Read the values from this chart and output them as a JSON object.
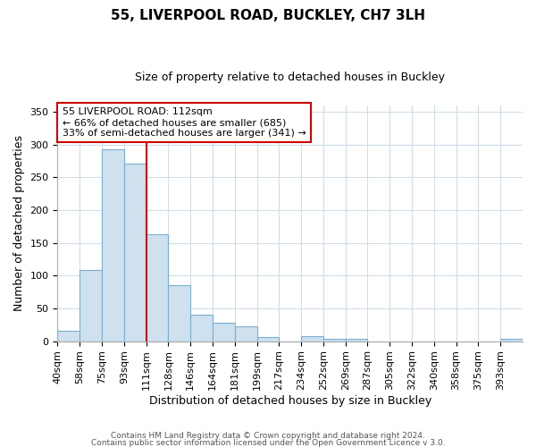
{
  "title": "55, LIVERPOOL ROAD, BUCKLEY, CH7 3LH",
  "subtitle": "Size of property relative to detached houses in Buckley",
  "xlabel": "Distribution of detached houses by size in Buckley",
  "ylabel": "Number of detached properties",
  "bin_labels": [
    "40sqm",
    "58sqm",
    "75sqm",
    "93sqm",
    "111sqm",
    "128sqm",
    "146sqm",
    "164sqm",
    "181sqm",
    "199sqm",
    "217sqm",
    "234sqm",
    "252sqm",
    "269sqm",
    "287sqm",
    "305sqm",
    "322sqm",
    "340sqm",
    "358sqm",
    "375sqm",
    "393sqm"
  ],
  "bar_heights": [
    16,
    109,
    293,
    271,
    163,
    86,
    41,
    28,
    22,
    6,
    0,
    7,
    4,
    3,
    0,
    0,
    0,
    0,
    0,
    0,
    3
  ],
  "vline_index": 4,
  "annotation_title": "55 LIVERPOOL ROAD: 112sqm",
  "annotation_line1": "← 66% of detached houses are smaller (685)",
  "annotation_line2": "33% of semi-detached houses are larger (341) →",
  "bar_color": "#cfe0ef",
  "bar_edge_color": "#7ab0d0",
  "vline_color": "#cc0000",
  "annotation_box_edge_color": "#cc0000",
  "ylim": [
    0,
    360
  ],
  "yticks": [
    0,
    50,
    100,
    150,
    200,
    250,
    300,
    350
  ],
  "footer1": "Contains HM Land Registry data © Crown copyright and database right 2024.",
  "footer2": "Contains public sector information licensed under the Open Government Licence v 3.0.",
  "grid_color": "#d0dde8",
  "title_fontsize": 11,
  "subtitle_fontsize": 9,
  "axis_label_fontsize": 9,
  "tick_fontsize": 8,
  "annotation_fontsize": 8,
  "footer_fontsize": 6.5
}
